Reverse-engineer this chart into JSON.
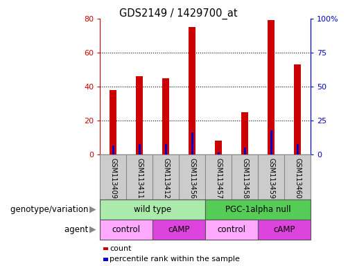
{
  "title": "GDS2149 / 1429700_at",
  "samples": [
    "GSM113409",
    "GSM113411",
    "GSM113412",
    "GSM113456",
    "GSM113457",
    "GSM113458",
    "GSM113459",
    "GSM113460"
  ],
  "count_values": [
    38,
    46,
    45,
    75,
    8,
    25,
    79,
    53
  ],
  "percentile_values": [
    5,
    6,
    6,
    13,
    1,
    4,
    14,
    6
  ],
  "ylim_left": [
    0,
    80
  ],
  "ylim_right": [
    0,
    100
  ],
  "yticks_left": [
    0,
    20,
    40,
    60,
    80
  ],
  "yticks_right": [
    0,
    25,
    50,
    75,
    100
  ],
  "ytick_labels_right": [
    "0",
    "25",
    "50",
    "75",
    "100%"
  ],
  "bar_color_count": "#cc0000",
  "bar_color_percentile": "#0000cc",
  "genotype_groups": [
    {
      "label": "wild type",
      "span": [
        0,
        4
      ],
      "color": "#aaeaaa"
    },
    {
      "label": "PGC-1alpha null",
      "span": [
        4,
        8
      ],
      "color": "#55cc55"
    }
  ],
  "agent_groups": [
    {
      "label": "control",
      "span": [
        0,
        2
      ],
      "color": "#ffaaff"
    },
    {
      "label": "cAMP",
      "span": [
        2,
        4
      ],
      "color": "#dd44dd"
    },
    {
      "label": "control",
      "span": [
        4,
        6
      ],
      "color": "#ffaaff"
    },
    {
      "label": "cAMP",
      "span": [
        6,
        8
      ],
      "color": "#dd44dd"
    }
  ],
  "legend_count_label": "count",
  "legend_percentile_label": "percentile rank within the sample",
  "genotype_label": "genotype/variation",
  "agent_label": "agent",
  "tick_label_color": "#cc0000",
  "right_tick_color": "#0000cc",
  "sample_bg_color": "#cccccc",
  "sample_border_color": "#888888",
  "background_color": "#ffffff"
}
